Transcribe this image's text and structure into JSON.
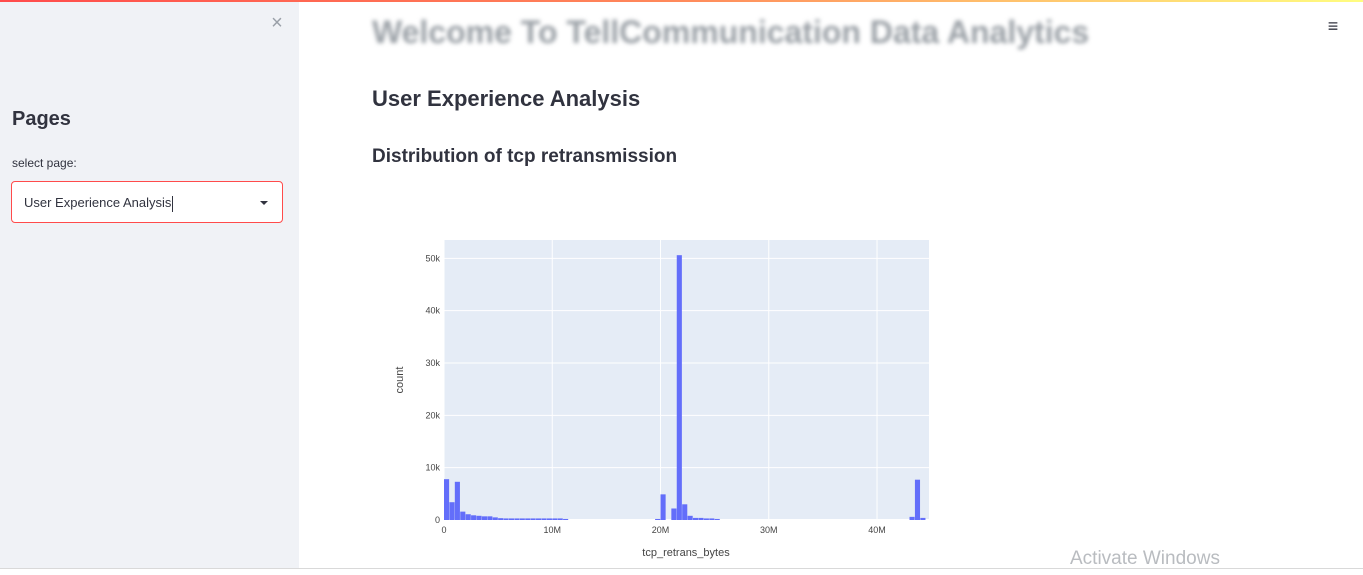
{
  "sidebar": {
    "close_icon": "×",
    "heading": "Pages",
    "select_label": "select page:",
    "select_value": "User Experience Analysis"
  },
  "header": {
    "menu_icon": "≡"
  },
  "main": {
    "title": "Welcome To TellCommunication Data Analytics",
    "subtitle": "User Experience Analysis",
    "section_title": "Distribution of tcp retransmission"
  },
  "chart_data": {
    "type": "bar",
    "title": "",
    "xlabel": "tcp_retrans_bytes",
    "ylabel": "count",
    "xlim": [
      0,
      44800000
    ],
    "ylim": [
      0,
      53500
    ],
    "xticks": [
      0,
      10000000,
      20000000,
      30000000,
      40000000
    ],
    "xtick_labels": [
      "0",
      "10M",
      "20M",
      "30M",
      "40M"
    ],
    "yticks": [
      0,
      10000,
      20000,
      30000,
      40000,
      50000
    ],
    "ytick_labels": [
      "0",
      "10k",
      "20k",
      "30k",
      "40k",
      "50k"
    ],
    "bin_width": 500000,
    "bin_starts": [
      0,
      500000,
      1000000,
      1500000,
      2000000,
      2500000,
      3000000,
      3500000,
      4000000,
      4500000,
      5000000,
      5500000,
      6000000,
      6500000,
      7000000,
      7500000,
      8000000,
      8500000,
      9000000,
      9500000,
      10000000,
      10500000,
      11000000,
      19500000,
      20000000,
      21000000,
      21500000,
      22000000,
      22500000,
      23000000,
      23500000,
      24000000,
      24500000,
      25000000,
      43000000,
      43500000,
      44000000
    ],
    "values": [
      7800,
      3400,
      7300,
      1600,
      1100,
      900,
      800,
      700,
      700,
      500,
      350,
      300,
      300,
      300,
      300,
      300,
      300,
      300,
      300,
      300,
      300,
      300,
      200,
      200,
      4900,
      2200,
      50600,
      3000,
      800,
      400,
      400,
      300,
      300,
      200,
      600,
      7700,
      400
    ],
    "bar_color": "#636efa",
    "grid": true
  },
  "watermark": "Activate Windows"
}
